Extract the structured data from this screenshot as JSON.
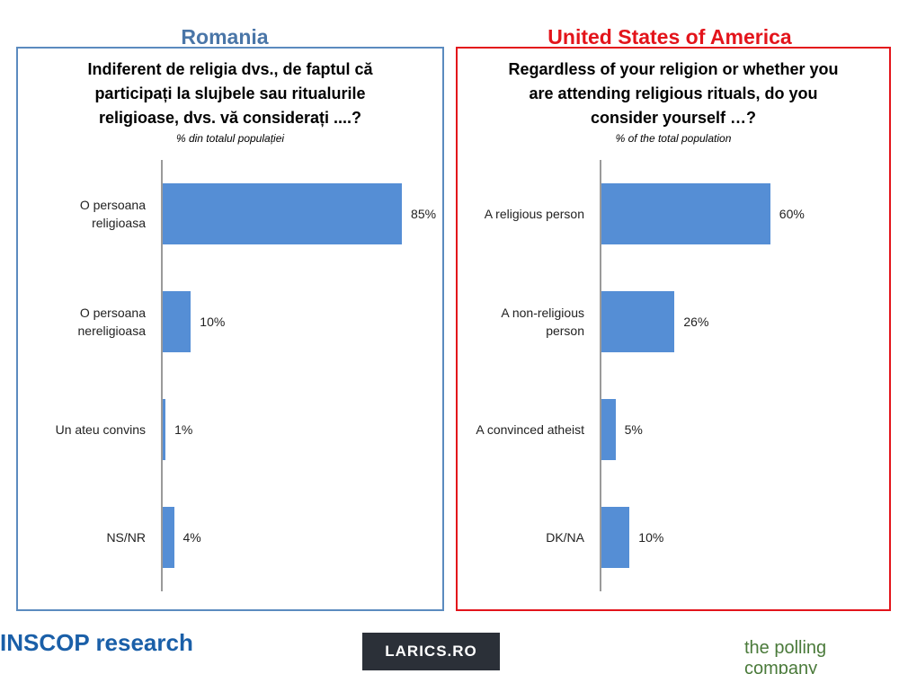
{
  "chart_data": [
    {
      "type": "bar",
      "orientation": "horizontal",
      "heading": "Romania",
      "title": "Indiferent de religia dvs., de faptul că participați la slujbele sau ritualurile religioase, dvs. vă considerați ....?",
      "subtitle": "% din totalul populației",
      "categories": [
        "O persoana religioasa",
        "O persoana nereligioasa",
        "Un ateu convins",
        "NS/NR"
      ],
      "values": [
        85,
        10,
        1,
        4
      ],
      "value_labels": [
        "85%",
        "10%",
        "1%",
        "4%"
      ],
      "color": "#558ed5",
      "xlim": [
        0,
        100
      ]
    },
    {
      "type": "bar",
      "orientation": "horizontal",
      "heading": "United States of America",
      "title": "Regardless of your religion or whether you are attending religious rituals, do you consider yourself …?",
      "subtitle": "% of the total population",
      "categories": [
        "A religious person",
        "A non-religious person",
        "A convinced atheist",
        "DK/NA"
      ],
      "values": [
        60,
        26,
        5,
        10
      ],
      "value_labels": [
        "60%",
        "26%",
        "5%",
        "10%"
      ],
      "color": "#558ed5",
      "xlim": [
        0,
        100
      ]
    }
  ],
  "logos": [
    "INSCOP research",
    "LARICS.RO",
    "the polling company"
  ]
}
